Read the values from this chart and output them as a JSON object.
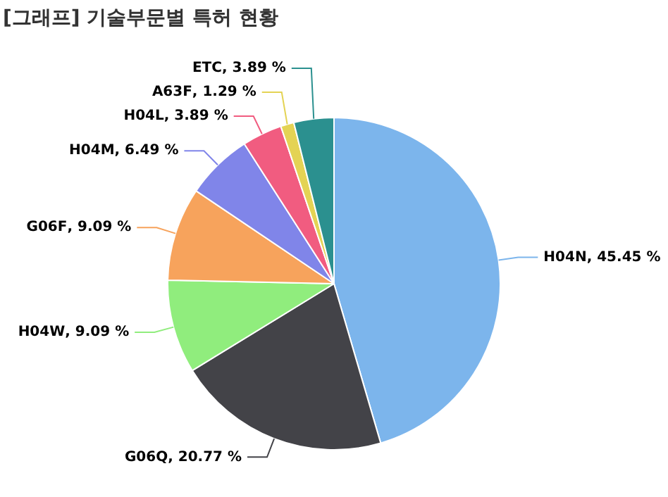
{
  "chart_data": {
    "type": "pie",
    "title": "[그래프] 기술부문별 특허 현황",
    "categories": [
      "H04N",
      "G06Q",
      "H04W",
      "G06F",
      "H04M",
      "H04L",
      "A63F",
      "ETC"
    ],
    "values": [
      45.45,
      20.77,
      9.09,
      9.09,
      6.49,
      3.89,
      1.29,
      3.89
    ],
    "value_labels": [
      ", 45.45 %",
      ", 20.77 %",
      ", 9.09 %",
      ", 9.09 %",
      ", 6.49 %",
      ", 3.89 %",
      ", 1.29 %",
      ", 3.89 %"
    ],
    "colors": [
      "#7cb5ec",
      "#434348",
      "#90ed7d",
      "#f7a35c",
      "#8085e9",
      "#f15c80",
      "#e4d354",
      "#2b908f"
    ],
    "legend": false
  }
}
